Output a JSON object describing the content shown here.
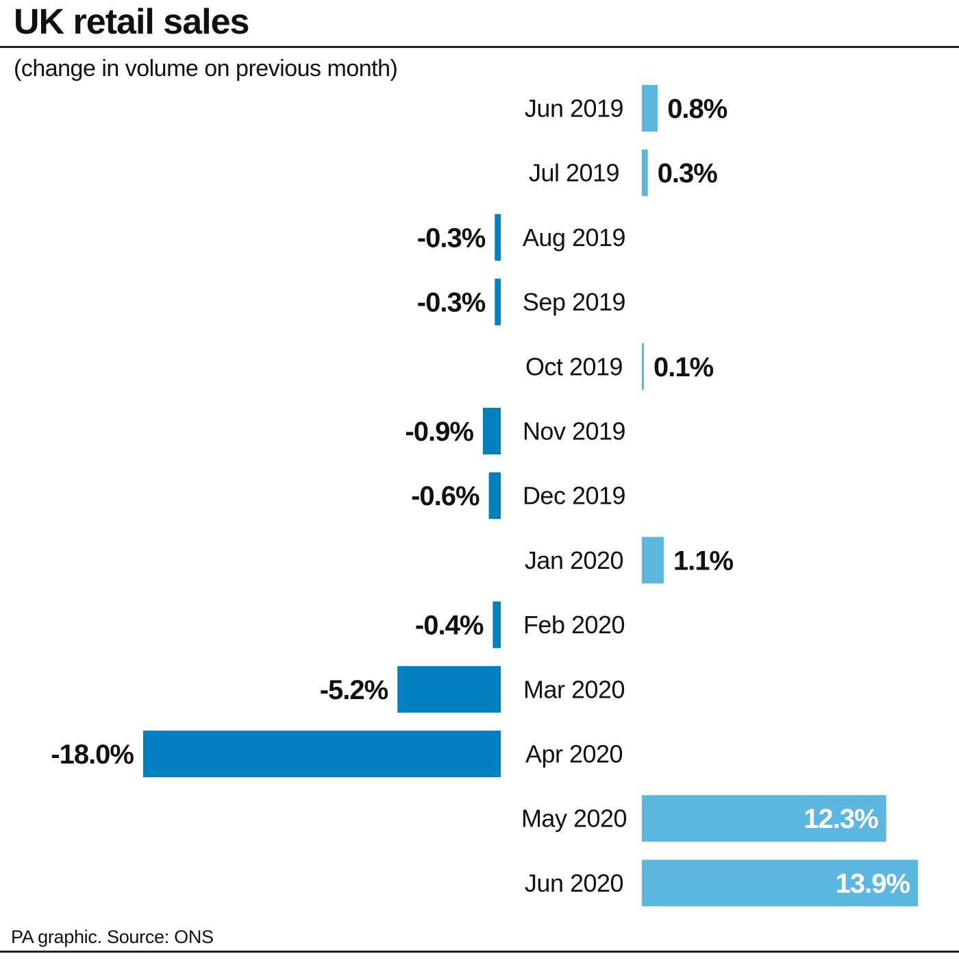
{
  "header": {
    "title": "UK retail sales",
    "subtitle": "(change in volume on previous month)"
  },
  "footer": {
    "source": "PA graphic. Source: ONS"
  },
  "colors": {
    "positive": "#5bb7df",
    "negative": "#0080bf",
    "rule": "#222222"
  },
  "chart_data": {
    "type": "bar",
    "orientation": "horizontal",
    "categories": [
      "Jun 2019",
      "Jul 2019",
      "Aug 2019",
      "Sep 2019",
      "Oct 2019",
      "Nov 2019",
      "Dec 2019",
      "Jan 2020",
      "Feb 2020",
      "Mar 2020",
      "Apr 2020",
      "May 2020",
      "Jun 2020"
    ],
    "values": [
      0.8,
      0.3,
      -0.3,
      -0.3,
      0.1,
      -0.9,
      -0.6,
      1.1,
      -0.4,
      -5.2,
      -18.0,
      12.3,
      13.9
    ],
    "value_labels": [
      "0.8%",
      "0.3%",
      "-0.3%",
      "-0.3%",
      "0.1%",
      "-0.9%",
      "-0.6%",
      "1.1%",
      "-0.4%",
      "-5.2%",
      "-18.0%",
      "12.3%",
      "13.9%"
    ],
    "unit": "%",
    "grid": false,
    "legend": "none"
  }
}
